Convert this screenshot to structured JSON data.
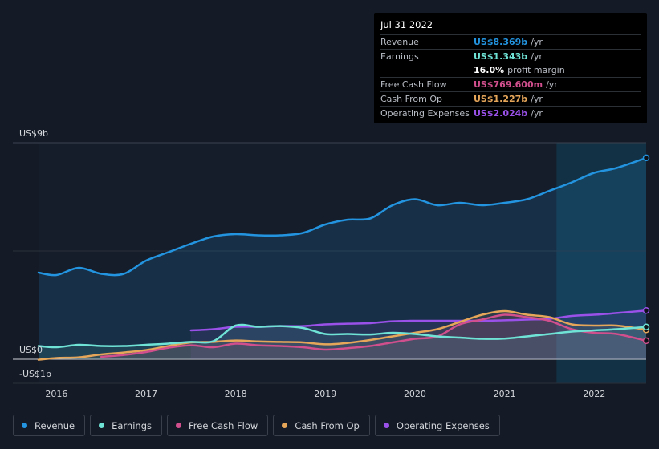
{
  "chart_data": {
    "type": "line",
    "x": [
      2015.8,
      2016.0,
      2016.25,
      2016.5,
      2016.75,
      2017.0,
      2017.25,
      2017.5,
      2017.75,
      2018.0,
      2018.25,
      2018.5,
      2018.75,
      2019.0,
      2019.25,
      2019.5,
      2019.75,
      2020.0,
      2020.25,
      2020.5,
      2020.75,
      2021.0,
      2021.25,
      2021.5,
      2021.75,
      2022.0,
      2022.25,
      2022.58
    ],
    "series": [
      {
        "name": "Revenue",
        "color": "#2394df",
        "values": [
          3.6,
          3.5,
          3.8,
          3.55,
          3.55,
          4.1,
          4.45,
          4.8,
          5.1,
          5.2,
          5.15,
          5.15,
          5.25,
          5.6,
          5.8,
          5.85,
          6.4,
          6.65,
          6.4,
          6.5,
          6.4,
          6.5,
          6.65,
          7.0,
          7.35,
          7.75,
          7.95,
          8.369
        ]
      },
      {
        "name": "Earnings",
        "color": "#6fe3d6",
        "values": [
          0.55,
          0.5,
          0.6,
          0.55,
          0.55,
          0.6,
          0.65,
          0.72,
          0.75,
          1.4,
          1.35,
          1.38,
          1.3,
          1.05,
          1.05,
          1.03,
          1.1,
          1.05,
          0.95,
          0.9,
          0.85,
          0.86,
          0.95,
          1.05,
          1.15,
          1.2,
          1.25,
          1.343
        ]
      },
      {
        "name": "Free Cash Flow",
        "color": "#d14f8d",
        "values": [
          null,
          null,
          null,
          0.1,
          0.18,
          0.3,
          0.48,
          0.58,
          0.5,
          0.65,
          0.58,
          0.55,
          0.5,
          0.4,
          0.46,
          0.55,
          0.7,
          0.85,
          0.95,
          1.45,
          1.65,
          1.85,
          1.75,
          1.6,
          1.25,
          1.1,
          1.05,
          0.7696
        ]
      },
      {
        "name": "Cash From Op",
        "color": "#e6a65a",
        "values": [
          -0.02,
          0.05,
          0.08,
          0.2,
          0.28,
          0.38,
          0.55,
          0.7,
          0.72,
          0.78,
          0.74,
          0.72,
          0.7,
          0.62,
          0.68,
          0.8,
          0.95,
          1.1,
          1.25,
          1.55,
          1.85,
          2.0,
          1.85,
          1.75,
          1.45,
          1.4,
          1.4,
          1.227
        ]
      },
      {
        "name": "Operating Expenses",
        "color": "#9a51e9",
        "values": [
          null,
          null,
          null,
          null,
          null,
          null,
          null,
          1.2,
          1.25,
          1.35,
          1.35,
          1.38,
          1.38,
          1.45,
          1.48,
          1.5,
          1.58,
          1.6,
          1.6,
          1.6,
          1.6,
          1.62,
          1.65,
          1.68,
          1.8,
          1.85,
          1.92,
          2.024
        ]
      }
    ],
    "y_axis": {
      "labels": [
        "US$9b",
        "US$0",
        "-US$1b"
      ]
    },
    "ylim": [
      -1,
      9
    ],
    "xlim": [
      2015.8,
      2022.58
    ],
    "x_ticks": [
      2016,
      2017,
      2018,
      2019,
      2020,
      2021,
      2022
    ],
    "x_tick_labels": [
      "2016",
      "2017",
      "2018",
      "2019",
      "2020",
      "2021",
      "2022"
    ],
    "highlight_start": 2021.58
  },
  "tooltip": {
    "date": "Jul 31 2022",
    "rows": [
      {
        "label": "Revenue",
        "value": "US$8.369b",
        "unit": "/yr",
        "color": "#2394df"
      },
      {
        "label": "Earnings",
        "value": "US$1.343b",
        "unit": "/yr",
        "color": "#6fe3d6"
      },
      {
        "label": "",
        "value": "16.0%",
        "unit": "profit margin",
        "color": "#ffffff"
      },
      {
        "label": "Free Cash Flow",
        "value": "US$769.600m",
        "unit": "/yr",
        "color": "#d14f8d"
      },
      {
        "label": "Cash From Op",
        "value": "US$1.227b",
        "unit": "/yr",
        "color": "#e6a65a"
      },
      {
        "label": "Operating Expenses",
        "value": "US$2.024b",
        "unit": "/yr",
        "color": "#9a51e9"
      }
    ]
  },
  "legend": [
    {
      "label": "Revenue",
      "color": "#2394df"
    },
    {
      "label": "Earnings",
      "color": "#6fe3d6"
    },
    {
      "label": "Free Cash Flow",
      "color": "#d14f8d"
    },
    {
      "label": "Cash From Op",
      "color": "#e6a65a"
    },
    {
      "label": "Operating Expenses",
      "color": "#9a51e9"
    }
  ]
}
